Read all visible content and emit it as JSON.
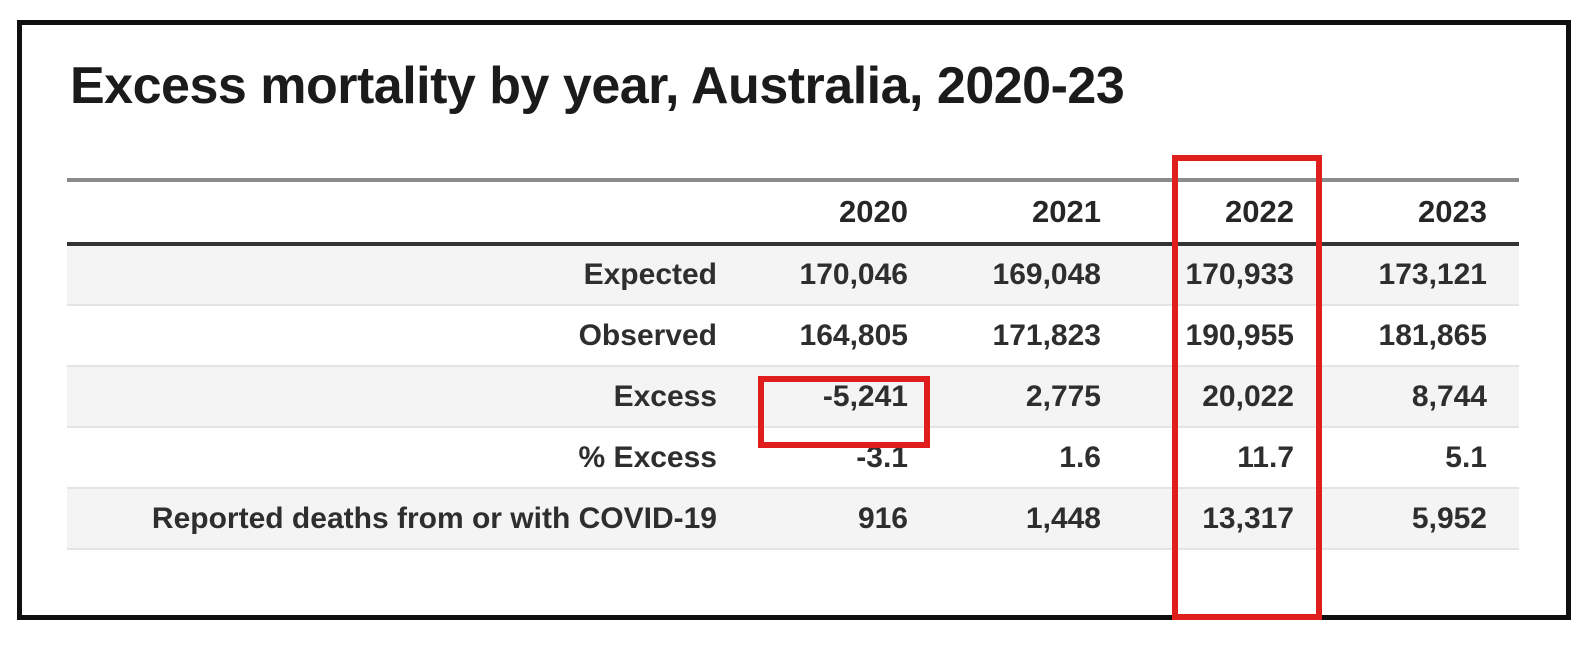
{
  "title": "Excess mortality by year, Australia, 2020-23",
  "chart_data": {
    "type": "table",
    "title": "Excess mortality by year, Australia, 2020-23",
    "columns": [
      "",
      "2020",
      "2021",
      "2022",
      "2023"
    ],
    "rows": [
      {
        "label": "Expected",
        "values": [
          "170,046",
          "169,048",
          "170,933",
          "173,121"
        ]
      },
      {
        "label": "Observed",
        "values": [
          "164,805",
          "171,823",
          "190,955",
          "181,865"
        ]
      },
      {
        "label": "Excess",
        "values": [
          "-5,241",
          "2,775",
          "20,022",
          "8,744"
        ]
      },
      {
        "label": "% Excess",
        "values": [
          "-3.1",
          "1.6",
          "11.7",
          "5.1"
        ]
      },
      {
        "label": "Reported deaths from or with COVID-19",
        "values": [
          "916",
          "1,448",
          "13,317",
          "5,952"
        ]
      }
    ],
    "numeric_series": [
      {
        "name": "Expected",
        "values": [
          170046,
          169048,
          170933,
          173121
        ]
      },
      {
        "name": "Observed",
        "values": [
          164805,
          171823,
          190955,
          181865
        ]
      },
      {
        "name": "Excess",
        "values": [
          -5241,
          2775,
          20022,
          8744
        ]
      },
      {
        "name": "% Excess",
        "values": [
          -3.1,
          1.6,
          11.7,
          5.1
        ]
      },
      {
        "name": "Reported deaths from or with COVID-19",
        "values": [
          916,
          1448,
          13317,
          5952
        ]
      }
    ],
    "years": [
      2020,
      2021,
      2022,
      2023
    ]
  },
  "annotations": {
    "highlight_color": "#e11e1e",
    "highlights": [
      {
        "target": "column-2022",
        "description": "red box around entire 2022 column"
      },
      {
        "target": "cell-excess-2020",
        "value": "-5,241",
        "description": "red box around Excess value for 2020"
      }
    ]
  }
}
